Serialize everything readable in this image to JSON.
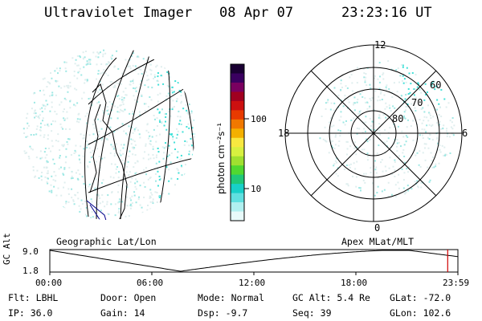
{
  "header": {
    "title": "Ultraviolet Imager",
    "date": "08 Apr 07",
    "time": "23:23:16 UT"
  },
  "colorbar": {
    "label": "photon cm⁻²s⁻¹",
    "ticks": [
      "100",
      "10"
    ],
    "colors": [
      "#1a0033",
      "#3a0060",
      "#7a0060",
      "#a00020",
      "#cc1010",
      "#e83a00",
      "#f07800",
      "#f4b000",
      "#f8e840",
      "#d8f040",
      "#a0e030",
      "#50d830",
      "#20c878",
      "#18d0c8",
      "#60e0e0",
      "#b0f0f0",
      "#e8fafa"
    ]
  },
  "left_panel": {
    "caption": "Geographic Lat/Lon"
  },
  "right_panel": {
    "caption": "Apex MLat/MLT",
    "mlt_labels": {
      "top": "12",
      "left": "18",
      "right": "6",
      "bottom": "0"
    },
    "lat_labels": [
      "60",
      "70",
      "80"
    ]
  },
  "altitude_strip": {
    "ylabel": "GC Alt",
    "ymax_label": "9.0",
    "ymin_label": "1.8",
    "x_ticks": [
      "00:00",
      "06:00",
      "12:00",
      "18:00",
      "23:59"
    ],
    "current_time_fraction": 0.975,
    "marker_color": "#d00000"
  },
  "info": {
    "row1": [
      {
        "label": "Flt:",
        "value": "LBHL"
      },
      {
        "label": "Door:",
        "value": "Open"
      },
      {
        "label": "Mode:",
        "value": "Normal"
      },
      {
        "label": "GC Alt:",
        "value": "5.4 Re"
      },
      {
        "label": "GLat:",
        "value": "-72.0"
      }
    ],
    "row2": [
      {
        "label": "IP:",
        "value": "36.0"
      },
      {
        "label": "Gain:",
        "value": "14"
      },
      {
        "label": "Dsp:",
        "value": "-9.7"
      },
      {
        "label": "Seq:",
        "value": "39"
      },
      {
        "label": "GLon:",
        "value": "102.6"
      }
    ]
  }
}
